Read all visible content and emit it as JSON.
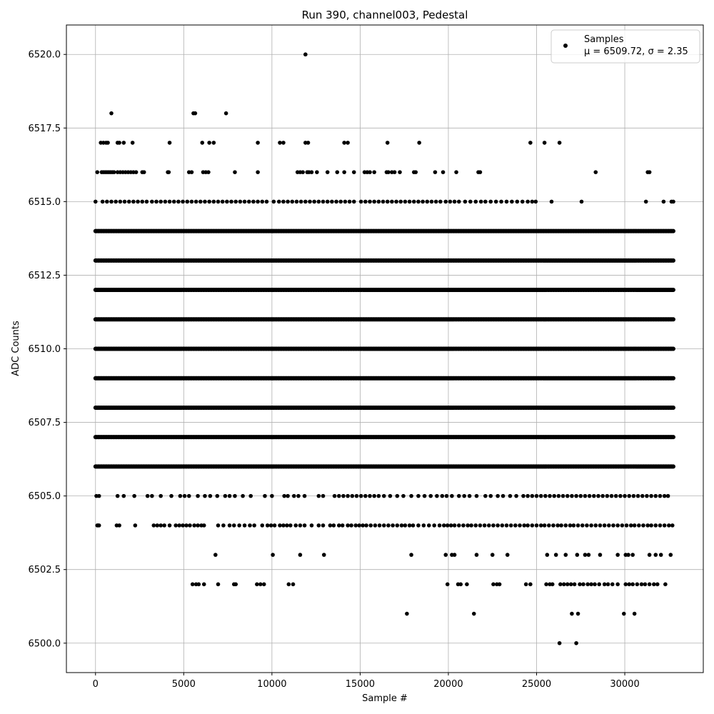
{
  "chart_data": {
    "type": "scatter",
    "title": "Run 390, channel003, Pedestal",
    "xlabel": "Sample #",
    "ylabel": "ADC Counts",
    "xlim": [
      -1650,
      34450
    ],
    "ylim": [
      6499.0,
      6521.0
    ],
    "x_ticks": [
      0,
      5000,
      10000,
      15000,
      20000,
      25000,
      30000
    ],
    "y_ticks": [
      6500.0,
      6502.5,
      6505.0,
      6507.5,
      6510.0,
      6512.5,
      6515.0,
      6517.5,
      6520.0
    ],
    "x_tick_labels": [
      "0",
      "5000",
      "10000",
      "15000",
      "20000",
      "25000",
      "30000"
    ],
    "y_tick_labels": [
      "6500.0",
      "6502.5",
      "6505.0",
      "6507.5",
      "6510.0",
      "6512.5",
      "6515.0",
      "6517.5",
      "6520.0"
    ],
    "grid": true,
    "marker_color": "#000000",
    "legend": {
      "placement": "upper right",
      "series_label": "Samples",
      "stats_label": "μ = 6509.72, σ = 2.35"
    },
    "series": [
      {
        "name": "Samples",
        "bands": [
          {
            "y": 6500,
            "x": [
              26300,
              27250
            ]
          },
          {
            "y": 6501,
            "x": [
              17650,
              21450,
              27000,
              27350,
              29950,
              30550
            ]
          },
          {
            "y": 6502,
            "x": [
              5500,
              5700,
              5850,
              6150,
              6950,
              7850,
              7950,
              9150,
              9350,
              9550,
              10950,
              11200,
              19950,
              20550,
              20700,
              21050,
              22550,
              22750,
              22900,
              24400,
              24650,
              25550,
              25750,
              25900,
              26350,
              26550,
              26750,
              26950,
              27150,
              27450,
              27650,
              27900,
              28100,
              28300,
              28550,
              28850,
              29050,
              29300,
              29600,
              30050,
              30250,
              30450,
              30700,
              30950,
              31150,
              31400,
              31650,
              31850,
              32300
            ]
          },
          {
            "y": 6503,
            "x": [
              6800,
              10050,
              11600,
              12950,
              17900,
              19850,
              20200,
              20350,
              21600,
              22500,
              23350,
              25600,
              26100,
              26650,
              27300,
              27750,
              27950,
              28600,
              29600,
              30050,
              30200,
              30450,
              31400,
              31750,
              32050,
              32600
            ]
          },
          {
            "y": 6504,
            "x": [
              100,
              150,
              200,
              1200,
              1350,
              2250,
              3300,
              3500,
              3700,
              3900,
              4200,
              4550,
              4750,
              4950,
              5150,
              5350,
              5600,
              5800,
              6000,
              6150,
              6950,
              7250,
              7600,
              7850,
              8150,
              8450,
              8750,
              9000,
              9450,
              9750,
              9950,
              10150,
              10450,
              10650,
              10850,
              11050,
              11350,
              11600,
              11850,
              12250,
              12650,
              12900,
              13300,
              13500,
              13800,
              14000,
              14300,
              14500,
              14750,
              14950,
              15150,
              15350,
              15600,
              15850,
              16100,
              16350,
              16600,
              16850,
              17100,
              17350,
              17550,
              17800,
              18000,
              18300,
              18600,
              18900,
              19200,
              19500,
              19750,
              19950,
              20150,
              20350,
              20600,
              20850,
              21100,
              21300,
              21550,
              21800,
              22050,
              22300,
              22550,
              22800,
              23050,
              23300,
              23550,
              23800,
              24050,
              24300,
              24500,
              24750,
              25000,
              25250,
              25450,
              25700,
              25950,
              26200,
              26400,
              26650,
              26900,
              27100,
              27350,
              27600,
              27850,
              28100,
              28350,
              28600,
              28850,
              29100,
              29350,
              29600,
              29850,
              30100,
              30350,
              30550,
              30800,
              31050,
              31300,
              31500,
              31750,
              32000,
              32250,
              32500,
              32700
            ]
          },
          {
            "y": 6505,
            "x": [
              50,
              200,
              1250,
              1600,
              2200,
              2950,
              3200,
              3700,
              4300,
              4800,
              5050,
              5300,
              5800,
              6200,
              6500,
              6900,
              7350,
              7600,
              7900,
              8350,
              8800,
              9600,
              10000,
              10700,
              10900,
              11250,
              11500,
              11850,
              12650,
              12900,
              13550,
              13800,
              14050,
              14300,
              14550,
              14800,
              15050,
              15300,
              15550,
              15800,
              16050,
              16350,
              16700,
              17100,
              17450,
              17900,
              18300,
              18650,
              19000,
              19350,
              19650,
              19900,
              20200,
              20600,
              20900,
              21200,
              21600,
              22100,
              22400,
              22800,
              23100,
              23500,
              23850,
              24250,
              24500,
              24750,
              25000,
              25250,
              25500,
              25750,
              26000,
              26250,
              26500,
              26750,
              27000,
              27250,
              27500,
              27750,
              28000,
              28250,
              28500,
              28750,
              29000,
              29250,
              29500,
              29750,
              30000,
              30250,
              30500,
              30750,
              31000,
              31250,
              31500,
              31750,
              32000,
              32250,
              32450
            ]
          },
          {
            "y": 6506,
            "x": [
              0,
              1000,
              2000,
              3000,
              4000,
              5000,
              6000,
              7000,
              8000,
              9000,
              10000,
              11000,
              12000,
              13000,
              14000,
              15000,
              16000,
              17000,
              18000,
              19000,
              20000,
              21000,
              22000,
              23000,
              24000,
              25000,
              26000,
              27000,
              28000,
              29000,
              30000,
              31000,
              32000,
              32750
            ],
            "dense": true
          },
          {
            "y": 6507,
            "x": [
              0,
              32750
            ],
            "dense": true
          },
          {
            "y": 6508,
            "x": [
              0,
              32750
            ],
            "dense": true
          },
          {
            "y": 6509,
            "x": [
              0,
              32750
            ],
            "dense": true
          },
          {
            "y": 6510,
            "x": [
              0,
              32750
            ],
            "dense": true
          },
          {
            "y": 6511,
            "x": [
              0,
              32750
            ],
            "dense": true
          },
          {
            "y": 6512,
            "x": [
              0,
              32750
            ],
            "dense": true
          },
          {
            "y": 6513,
            "x": [
              0,
              32750
            ],
            "dense": true
          },
          {
            "y": 6514,
            "x": [
              0,
              32750
            ],
            "dense": true
          },
          {
            "y": 6515,
            "x": [
              0,
              400,
              650,
              900,
              1150,
              1400,
              1650,
              1900,
              2150,
              2400,
              2650,
              2900,
              3200,
              3450,
              3700,
              3950,
              4200,
              4450,
              4700,
              4950,
              5200,
              5450,
              5700,
              5950,
              6200,
              6450,
              6700,
              6950,
              7200,
              7450,
              7700,
              7950,
              8200,
              8450,
              8700,
              8950,
              9200,
              9450,
              9700,
              10100,
              10400,
              10650,
              10900,
              11150,
              11400,
              11650,
              11900,
              12150,
              12400,
              12650,
              12900,
              13150,
              13400,
              13650,
              13900,
              14150,
              14400,
              14650,
              15050,
              15300,
              15550,
              15800,
              16050,
              16300,
              16550,
              16800,
              17050,
              17300,
              17550,
              17800,
              18050,
              18300,
              18550,
              18800,
              19050,
              19300,
              19550,
              19850,
              20100,
              20350,
              20600,
              20950,
              21250,
              21550,
              21850,
              22100,
              22400,
              22700,
              23000,
              23300,
              23600,
              23900,
              24200,
              24500,
              24750,
              24950,
              25850,
              27550,
              31200,
              32200,
              32650,
              32750
            ]
          },
          {
            "y": 6516,
            "x": [
              100,
              350,
              450,
              550,
              650,
              750,
              850,
              950,
              1050,
              1250,
              1400,
              1550,
              1700,
              1850,
              2000,
              2150,
              2300,
              2650,
              2750,
              4100,
              4150,
              5300,
              5450,
              6100,
              6250,
              6400,
              7900,
              9200,
              11450,
              11600,
              11750,
              12000,
              12100,
              12250,
              12550,
              13150,
              13700,
              14100,
              14650,
              15250,
              15400,
              15550,
              15800,
              16500,
              16600,
              16800,
              16950,
              17250,
              18050,
              18150,
              19250,
              19700,
              20450,
              21700,
              21800,
              28350,
              31300,
              31400
            ]
          },
          {
            "y": 6517,
            "x": [
              300,
              450,
              600,
              700,
              1250,
              1350,
              1600,
              2100,
              4200,
              6050,
              6450,
              6700,
              9200,
              10450,
              10650,
              11900,
              12050,
              14100,
              14300,
              16550,
              18350,
              24650,
              25450,
              26300
            ]
          },
          {
            "y": 6518,
            "x": [
              900,
              5550,
              5650,
              7400
            ]
          },
          {
            "y": 6520,
            "x": [
              11900
            ]
          }
        ]
      }
    ]
  }
}
